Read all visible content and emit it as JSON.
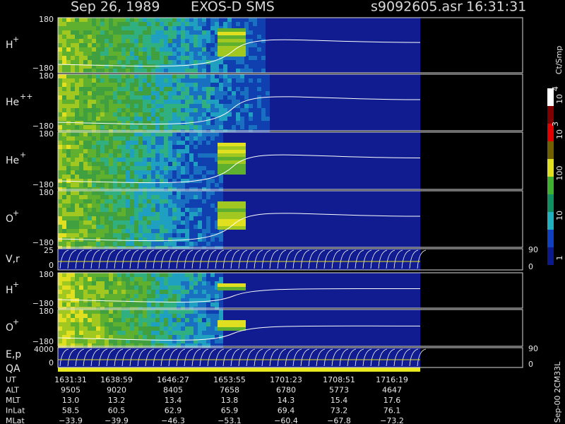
{
  "header": {
    "date": "Sep 26, 1989",
    "instrument": "EXOS-D SMS",
    "file": "s9092605.asr",
    "time": "16:31:31"
  },
  "panels": [
    {
      "label": "H",
      "sup": "+",
      "ticks": [
        "180",
        "−180"
      ]
    },
    {
      "label": "He",
      "sup": "++",
      "ticks": [
        "180",
        "−180"
      ]
    },
    {
      "label": "He",
      "sup": "+",
      "ticks": [
        "180",
        "−180"
      ]
    },
    {
      "label": "O",
      "sup": "+",
      "ticks": [
        "180",
        "−180"
      ]
    },
    {
      "label": "V,r",
      "ticks": [
        "25",
        "0"
      ],
      "right_ticks": [
        "90",
        "0"
      ]
    },
    {
      "label": "H",
      "sup": "+",
      "ticks": [
        "180",
        "−180"
      ]
    },
    {
      "label": "O",
      "sup": "+",
      "ticks": [
        "180",
        "−180"
      ]
    },
    {
      "label": "E,p",
      "label2": "QA",
      "ticks": [
        "4000",
        "0"
      ],
      "right_ticks": [
        "90",
        "0"
      ]
    }
  ],
  "colorbar": {
    "unit": "Ct/Smp",
    "labels": [
      {
        "base": "10",
        "exp": "4"
      },
      {
        "base": "10",
        "exp": "3"
      },
      {
        "base": "100"
      },
      {
        "base": "10"
      },
      {
        "base": "1"
      }
    ]
  },
  "footer_note": "Sep-00 2CM33L",
  "table": {
    "rows": [
      {
        "label": "UT",
        "values": [
          "1631:31",
          "1638:59",
          "1646:27",
          "1653:55",
          "1701:23",
          "1708:51",
          "1716:19"
        ]
      },
      {
        "label": "ALT",
        "values": [
          "9505",
          "9020",
          "8405",
          "7658",
          "6780",
          "5773",
          "4647"
        ]
      },
      {
        "label": "MLT",
        "values": [
          "13.0",
          "13.2",
          "13.4",
          "13.8",
          "14.3",
          "15.4",
          "17.6"
        ]
      },
      {
        "label": "InLat",
        "values": [
          "58.5",
          "60.5",
          "62.9",
          "65.9",
          "69.4",
          "73.2",
          "76.1"
        ]
      },
      {
        "label": "MLat",
        "values": [
          "−33.9",
          "−39.9",
          "−46.3",
          "−53.1",
          "−60.4",
          "−67.8",
          "−73.2"
        ]
      }
    ]
  }
}
